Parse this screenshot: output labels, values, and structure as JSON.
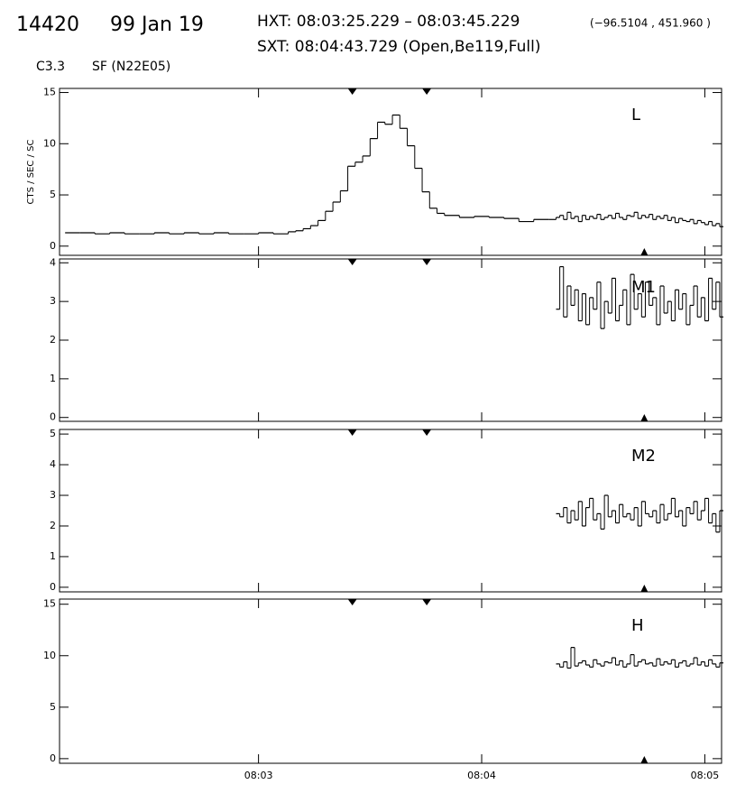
{
  "header": {
    "event": "14420",
    "date": "99 Jan 19",
    "hxt": "HXT: 08:03:25.229 – 08:03:45.229",
    "coords": "(−96.5104 , 451.960 )",
    "sxt": "SXT: 08:04:43.729 (Open,Be119,Full)",
    "class": "C3.3",
    "region": "SF (N22E05)"
  },
  "markers": {
    "hxt_interval": [
      205.229,
      225.229
    ],
    "sxt_time": 283.729
  },
  "chart_data": [
    {
      "type": "line",
      "step": true,
      "label": "L",
      "ylabel": "CTS / SEC / SC",
      "color": "#000000",
      "ylim": [
        -0.9,
        15.4
      ],
      "yticks": [
        0,
        5,
        10,
        15
      ],
      "x": [
        128,
        132,
        136,
        140,
        144,
        148,
        152,
        156,
        160,
        164,
        168,
        172,
        176,
        180,
        184,
        188,
        190,
        192,
        194,
        196,
        198,
        200,
        202,
        204,
        206,
        208,
        210,
        212,
        214,
        216,
        218,
        220,
        222,
        224,
        226,
        228,
        230,
        234,
        238,
        242,
        246,
        250,
        254,
        258,
        260,
        261,
        262,
        263,
        264,
        265,
        266,
        267,
        268,
        269,
        270,
        271,
        272,
        273,
        274,
        275,
        276,
        277,
        278,
        279,
        280,
        281,
        282,
        283,
        284,
        285,
        286,
        287,
        288,
        289,
        290,
        291,
        292,
        293,
        294,
        295,
        296,
        297,
        298,
        299,
        300,
        301,
        302,
        303,
        304
      ],
      "values": [
        1.3,
        1.3,
        1.2,
        1.3,
        1.2,
        1.2,
        1.3,
        1.2,
        1.3,
        1.2,
        1.3,
        1.2,
        1.2,
        1.3,
        1.2,
        1.4,
        1.5,
        1.7,
        2.0,
        2.5,
        3.4,
        4.3,
        5.4,
        7.8,
        8.2,
        8.8,
        10.5,
        12.1,
        11.9,
        12.8,
        11.5,
        9.8,
        7.6,
        5.3,
        3.7,
        3.2,
        3.0,
        2.8,
        2.9,
        2.8,
        2.7,
        2.4,
        2.6,
        2.6,
        2.8,
        3.0,
        2.6,
        3.3,
        2.7,
        2.9,
        2.4,
        3.0,
        2.6,
        2.9,
        2.7,
        3.1,
        2.6,
        2.8,
        3.0,
        2.7,
        3.2,
        2.8,
        2.6,
        3.0,
        2.9,
        3.3,
        2.7,
        3.0,
        2.8,
        3.1,
        2.6,
        2.9,
        2.7,
        3.0,
        2.5,
        2.8,
        2.3,
        2.7,
        2.5,
        2.4,
        2.6,
        2.2,
        2.5,
        2.3,
        2.1,
        2.4,
        2.0,
        2.2,
        1.9
      ]
    },
    {
      "type": "line",
      "step": true,
      "label": "M1",
      "color": "#000000",
      "ylim": [
        -0.1,
        4.1
      ],
      "yticks": [
        0,
        1,
        2,
        3,
        4
      ],
      "x": [
        260,
        261,
        262,
        263,
        264,
        265,
        266,
        267,
        268,
        269,
        270,
        271,
        272,
        273,
        274,
        275,
        276,
        277,
        278,
        279,
        280,
        281,
        282,
        283,
        284,
        285,
        286,
        287,
        288,
        289,
        290,
        291,
        292,
        293,
        294,
        295,
        296,
        297,
        298,
        299,
        300,
        301,
        302,
        303,
        304
      ],
      "values": [
        2.8,
        3.9,
        2.6,
        3.4,
        2.9,
        3.3,
        2.5,
        3.2,
        2.4,
        3.1,
        2.8,
        3.5,
        2.3,
        3.0,
        2.7,
        3.6,
        2.5,
        2.9,
        3.3,
        2.4,
        3.7,
        2.8,
        3.2,
        2.6,
        3.5,
        2.9,
        3.1,
        2.4,
        3.4,
        2.7,
        3.0,
        2.5,
        3.3,
        2.8,
        3.2,
        2.4,
        2.9,
        3.4,
        2.6,
        3.1,
        2.5,
        3.6,
        2.8,
        3.5,
        2.6
      ]
    },
    {
      "type": "line",
      "step": true,
      "label": "M2",
      "color": "#000000",
      "ylim": [
        -0.15,
        5.15
      ],
      "yticks": [
        0,
        1,
        2,
        3,
        4,
        5
      ],
      "x": [
        260,
        261,
        262,
        263,
        264,
        265,
        266,
        267,
        268,
        269,
        270,
        271,
        272,
        273,
        274,
        275,
        276,
        277,
        278,
        279,
        280,
        281,
        282,
        283,
        284,
        285,
        286,
        287,
        288,
        289,
        290,
        291,
        292,
        293,
        294,
        295,
        296,
        297,
        298,
        299,
        300,
        301,
        302,
        303,
        304
      ],
      "values": [
        2.4,
        2.3,
        2.6,
        2.1,
        2.5,
        2.2,
        2.8,
        2.0,
        2.6,
        2.9,
        2.2,
        2.4,
        1.9,
        3.0,
        2.3,
        2.5,
        2.1,
        2.7,
        2.3,
        2.4,
        2.2,
        2.6,
        2.0,
        2.8,
        2.4,
        2.3,
        2.5,
        2.1,
        2.7,
        2.2,
        2.4,
        2.9,
        2.3,
        2.5,
        2.0,
        2.6,
        2.4,
        2.8,
        2.2,
        2.5,
        2.9,
        2.1,
        2.4,
        1.8,
        2.5
      ]
    },
    {
      "type": "line",
      "step": true,
      "label": "H",
      "color": "#000000",
      "ylim": [
        -0.45,
        15.5
      ],
      "yticks": [
        0,
        5,
        10,
        15
      ],
      "xlim": [
        126.5,
        304.5
      ],
      "xticks": [
        {
          "value": 180,
          "label": "08:03"
        },
        {
          "value": 240,
          "label": "08:04"
        },
        {
          "value": 300,
          "label": "08:05"
        }
      ],
      "x": [
        260,
        261,
        262,
        263,
        264,
        265,
        266,
        267,
        268,
        269,
        270,
        271,
        272,
        273,
        274,
        275,
        276,
        277,
        278,
        279,
        280,
        281,
        282,
        283,
        284,
        285,
        286,
        287,
        288,
        289,
        290,
        291,
        292,
        293,
        294,
        295,
        296,
        297,
        298,
        299,
        300,
        301,
        302,
        303,
        304
      ],
      "values": [
        9.2,
        8.9,
        9.4,
        8.8,
        10.8,
        9.0,
        9.3,
        9.5,
        9.1,
        8.9,
        9.6,
        9.2,
        9.0,
        9.4,
        9.3,
        9.8,
        9.1,
        9.5,
        8.9,
        9.2,
        10.1,
        9.0,
        9.4,
        9.6,
        9.2,
        9.3,
        9.0,
        9.7,
        9.1,
        9.4,
        9.2,
        9.6,
        8.9,
        9.3,
        9.5,
        9.0,
        9.2,
        9.8,
        9.1,
        9.4,
        9.0,
        9.6,
        9.2,
        8.9,
        9.3
      ]
    }
  ]
}
